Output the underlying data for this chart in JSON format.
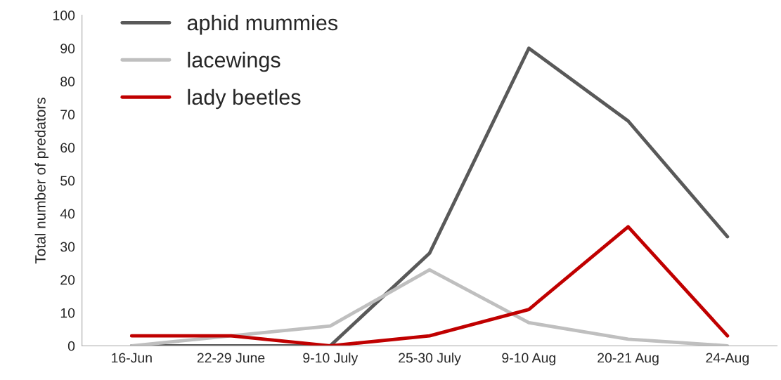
{
  "chart_data": {
    "type": "line",
    "ylabel": "Total number of predators",
    "categories": [
      "16-Jun",
      "22-29 June",
      "9-10 July",
      "25-30 July",
      "9-10 Aug",
      "20-21 Aug",
      "24-Aug"
    ],
    "series": [
      {
        "name": "aphid mummies",
        "color": "#595959",
        "values": [
          0,
          0,
          0,
          28,
          90,
          68,
          33
        ]
      },
      {
        "name": "lacewings",
        "color": "#bfbfbf",
        "values": [
          0,
          3,
          6,
          23,
          7,
          2,
          0
        ]
      },
      {
        "name": "lady beetles",
        "color": "#c00000",
        "values": [
          3,
          3,
          0,
          3,
          11,
          36,
          3
        ]
      }
    ],
    "ylim": [
      0,
      100
    ],
    "yticks": [
      0,
      10,
      20,
      30,
      40,
      50,
      60,
      70,
      80,
      90,
      100
    ],
    "grid": false,
    "legend": "top left",
    "marker": "none",
    "line_style": "solid"
  }
}
